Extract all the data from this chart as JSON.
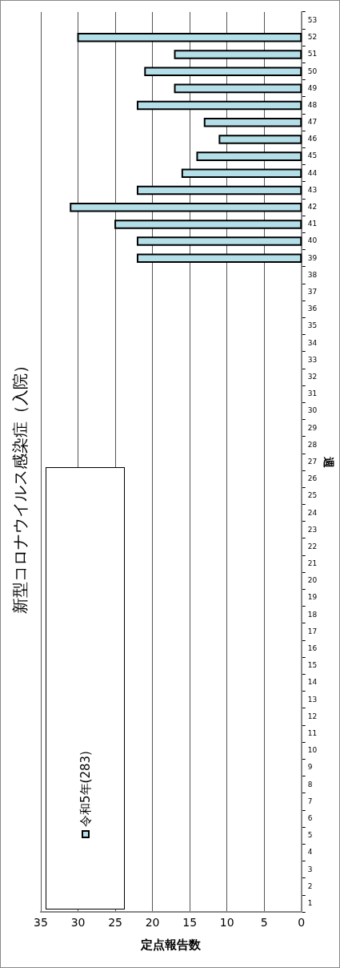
{
  "chart_data": {
    "type": "bar",
    "orientation": "horizontal",
    "title": "新型コロナウイルス感染症（入院）",
    "xlabel": "定点報告数",
    "ylabel": "週",
    "categories": [
      "53",
      "52",
      "51",
      "50",
      "49",
      "48",
      "47",
      "46",
      "45",
      "44",
      "43",
      "42",
      "41",
      "40",
      "39",
      "38",
      "37",
      "36",
      "35",
      "34",
      "33",
      "32",
      "31",
      "30",
      "29",
      "28",
      "27",
      "26",
      "25",
      "24",
      "23",
      "22",
      "21",
      "20",
      "19",
      "18",
      "17",
      "16",
      "15",
      "14",
      "13",
      "12",
      "11",
      "10",
      "9",
      "8",
      "7",
      "6",
      "5",
      "4",
      "3",
      "2",
      "1"
    ],
    "series": [
      {
        "name": "令和5年(283)",
        "color": "#b4dfe8",
        "values": [
          null,
          30,
          17,
          21,
          17,
          22,
          13,
          11,
          14,
          16,
          22,
          31,
          25,
          22,
          22,
          null,
          null,
          null,
          null,
          null,
          null,
          null,
          null,
          null,
          null,
          null,
          null,
          null,
          null,
          null,
          null,
          null,
          null,
          null,
          null,
          null,
          null,
          null,
          null,
          null,
          null,
          null,
          null,
          null,
          null,
          null,
          null,
          null,
          null,
          null,
          null,
          null,
          null
        ]
      }
    ],
    "xlim": [
      35,
      0
    ],
    "xticks": [
      0,
      5,
      10,
      15,
      20,
      25,
      30,
      35
    ],
    "grid": "x",
    "legend": "bottom left"
  }
}
